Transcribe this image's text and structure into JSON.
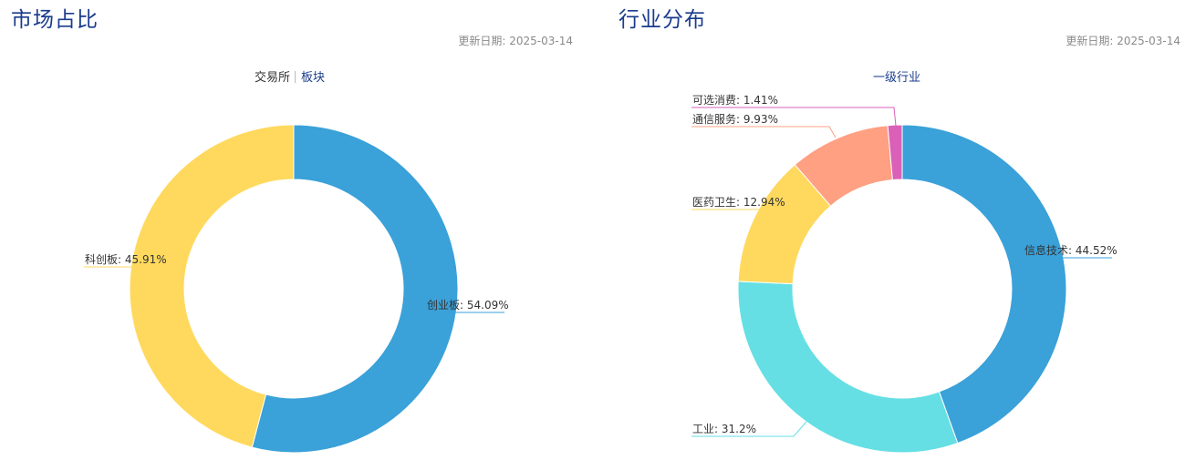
{
  "left_panel": {
    "title": "市场占比",
    "updated_label": "更新日期:",
    "updated_date": "2025-03-14",
    "tabs": [
      {
        "label": "交易所",
        "active": true
      },
      {
        "label": "板块",
        "active": false
      }
    ]
  },
  "right_panel": {
    "title": "行业分布",
    "updated_label": "更新日期:",
    "updated_date": "2025-03-14",
    "tabs": [
      {
        "label": "一级行业",
        "active": false
      }
    ]
  },
  "chart_data": [
    {
      "type": "pie",
      "variant": "donut",
      "start": "12 o'clock",
      "direction": "clockwise",
      "slices": [
        {
          "name": "创业板",
          "value": 54.09,
          "label": "创业板: 54.09%",
          "color": "#3aa1d9"
        },
        {
          "name": "科创板",
          "value": 45.91,
          "label": "科创板: 45.91%",
          "color": "#ffd95e"
        }
      ]
    },
    {
      "type": "pie",
      "variant": "donut",
      "start": "12 o'clock",
      "direction": "clockwise",
      "slices": [
        {
          "name": "信息技术",
          "value": 44.52,
          "label": "信息技术: 44.52%",
          "color": "#3aa1d9"
        },
        {
          "name": "工业",
          "value": 31.2,
          "label": "工业: 31.2%",
          "color": "#66dfe4"
        },
        {
          "name": "医药卫生",
          "value": 12.94,
          "label": "医药卫生: 12.94%",
          "color": "#ffd95e"
        },
        {
          "name": "通信服务",
          "value": 9.93,
          "label": "通信服务: 9.93%",
          "color": "#ffa083"
        },
        {
          "name": "可选消费",
          "value": 1.41,
          "label": "可选消费: 1.41%",
          "color": "#da60b8"
        }
      ]
    }
  ]
}
